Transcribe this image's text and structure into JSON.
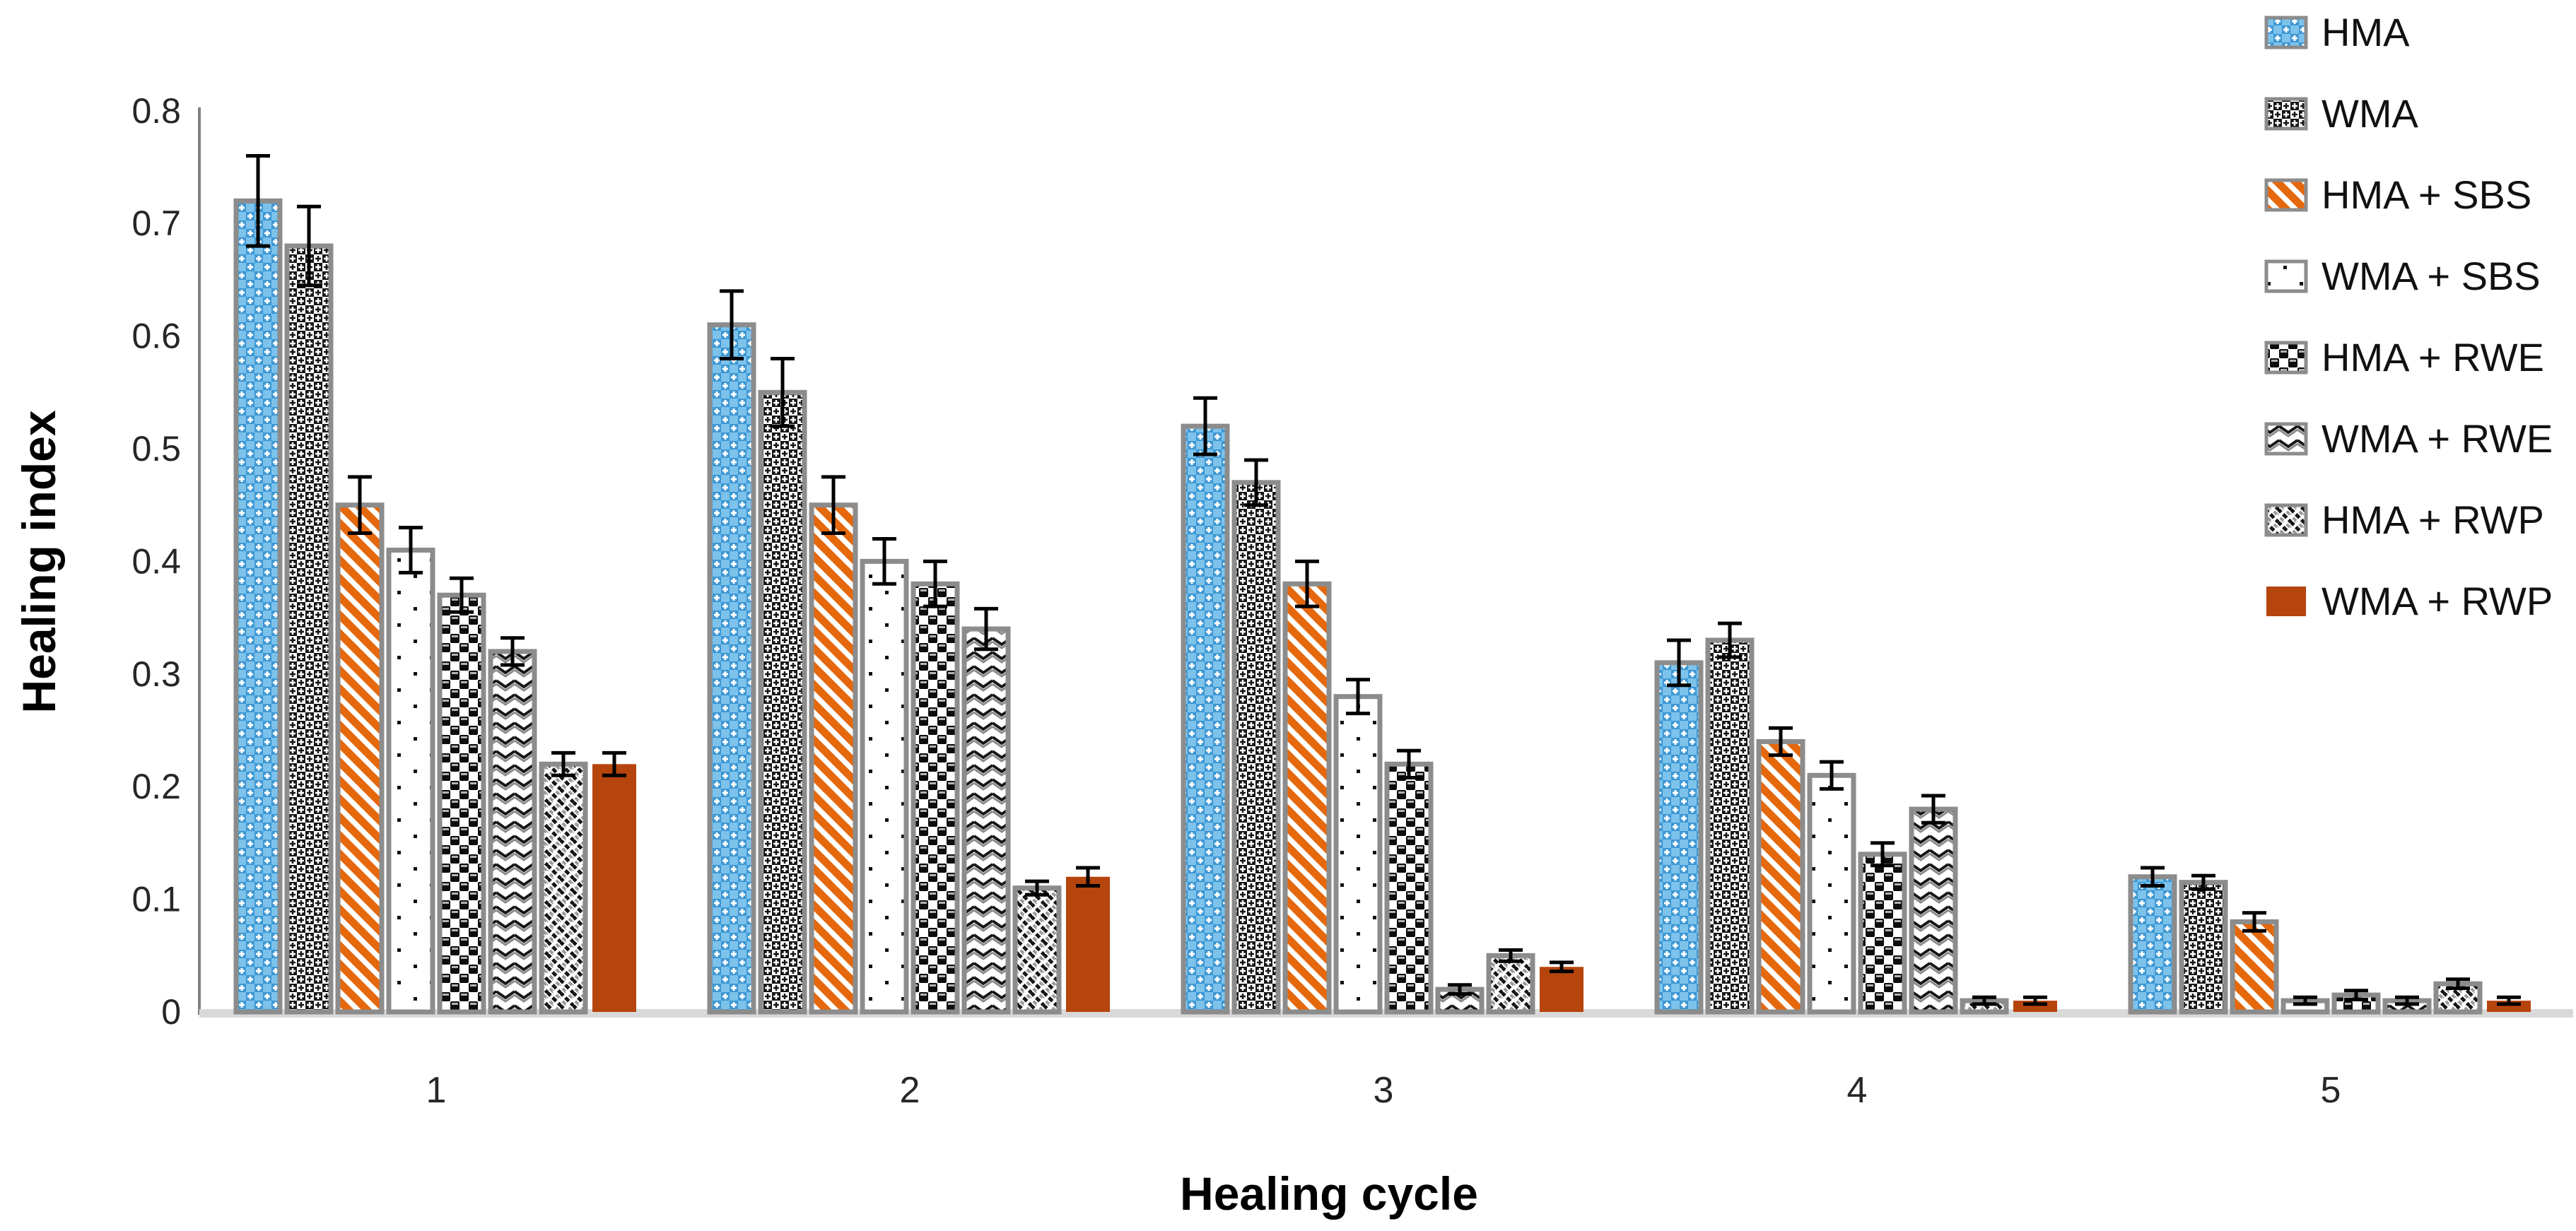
{
  "chart_data": {
    "type": "bar",
    "title": "",
    "xlabel": "Healing cycle",
    "ylabel": "Healing index",
    "categories": [
      "1",
      "2",
      "3",
      "4",
      "5"
    ],
    "ylim": [
      0,
      0.8
    ],
    "yticks": [
      "0",
      "0.1",
      "0.2",
      "0.3",
      "0.4",
      "0.5",
      "0.6",
      "0.7",
      "0.8"
    ],
    "grid": false,
    "error_bars": true,
    "legend_position": "top-right",
    "series": [
      {
        "name": "HMA",
        "pattern": "blue-check-weave",
        "pattern_id": "pat-hma",
        "values": [
          0.72,
          0.61,
          0.52,
          0.31,
          0.12
        ],
        "errors": [
          0.04,
          0.03,
          0.025,
          0.02,
          0.008
        ]
      },
      {
        "name": "WMA",
        "pattern": "black-check-weave",
        "pattern_id": "pat-wma",
        "values": [
          0.68,
          0.55,
          0.47,
          0.33,
          0.115
        ],
        "errors": [
          0.035,
          0.03,
          0.02,
          0.015,
          0.006
        ]
      },
      {
        "name": "HMA + SBS",
        "pattern": "orange-diagonal-stripe",
        "pattern_id": "pat-sbs",
        "values": [
          0.45,
          0.45,
          0.38,
          0.24,
          0.08
        ],
        "errors": [
          0.025,
          0.025,
          0.02,
          0.012,
          0.008
        ]
      },
      {
        "name": "WMA + SBS",
        "pattern": "sparse-dots",
        "pattern_id": "pat-wsbs",
        "values": [
          0.41,
          0.4,
          0.28,
          0.21,
          0.01
        ],
        "errors": [
          0.02,
          0.02,
          0.015,
          0.012,
          0.003
        ]
      },
      {
        "name": "HMA + RWE",
        "pattern": "black-ball-checker",
        "pattern_id": "pat-rwe",
        "values": [
          0.37,
          0.38,
          0.22,
          0.14,
          0.015
        ],
        "errors": [
          0.015,
          0.02,
          0.012,
          0.01,
          0.004
        ]
      },
      {
        "name": "WMA + RWE",
        "pattern": "chevron-zigzag",
        "pattern_id": "pat-rwec",
        "values": [
          0.32,
          0.34,
          0.02,
          0.18,
          0.01
        ],
        "errors": [
          0.012,
          0.018,
          0.004,
          0.012,
          0.003
        ]
      },
      {
        "name": "HMA + RWP",
        "pattern": "thin-diagonal-dashes",
        "pattern_id": "pat-rwp",
        "values": [
          0.22,
          0.11,
          0.05,
          0.01,
          0.025
        ],
        "errors": [
          0.01,
          0.006,
          0.005,
          0.003,
          0.004
        ]
      },
      {
        "name": "WMA + RWP",
        "pattern": "solid-brown",
        "pattern_id": "solid",
        "solid_color": "#B5440D",
        "values": [
          0.22,
          0.12,
          0.04,
          0.01,
          0.01
        ],
        "errors": [
          0.01,
          0.008,
          0.004,
          0.003,
          0.003
        ]
      }
    ]
  },
  "colors": {
    "bar_border": "#8C8C8C",
    "axis_line": "#808080",
    "baseline_band": "#D9D9D9",
    "error_bar": "#000000",
    "blue": "#4FA7DC",
    "blue_light": "#7CC2EB",
    "orange": "#E5680D",
    "brown": "#B5440D",
    "pattern_dark": "#161616"
  }
}
